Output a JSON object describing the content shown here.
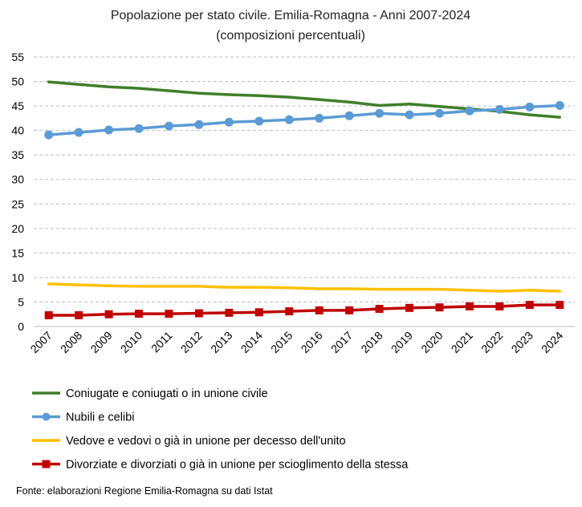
{
  "chart_data": {
    "type": "line",
    "title": "Popolazione per stato civile. Emilia-Romagna - Anni 2007-2024",
    "subtitle": "(composizioni percentuali)",
    "xlabel": "",
    "ylabel": "",
    "ylim": [
      0,
      55
    ],
    "yticks": [
      0,
      5,
      10,
      15,
      20,
      25,
      30,
      35,
      40,
      45,
      50,
      55
    ],
    "grid": true,
    "legend_position": "bottom",
    "categories": [
      "2007",
      "2008",
      "2009",
      "2010",
      "2011",
      "2012",
      "2013",
      "2014",
      "2015",
      "2016",
      "2017",
      "2018",
      "2019",
      "2020",
      "2021",
      "2022",
      "2023",
      "2024"
    ],
    "series": [
      {
        "name": "Coniugate e coniugati o in unione civile",
        "color": "#3f7f2a",
        "marker": "none",
        "values": [
          49.9,
          49.4,
          48.9,
          48.6,
          48.1,
          47.6,
          47.3,
          47.1,
          46.8,
          46.3,
          45.8,
          45.1,
          45.4,
          44.9,
          44.4,
          43.9,
          43.2,
          42.7
        ]
      },
      {
        "name": "Nubili e celibi",
        "color": "#5b9bd5",
        "marker": "circle",
        "values": [
          39.1,
          39.6,
          40.1,
          40.4,
          40.9,
          41.2,
          41.7,
          41.9,
          42.2,
          42.5,
          43.0,
          43.5,
          43.2,
          43.5,
          44.0,
          44.3,
          44.8,
          45.1
        ]
      },
      {
        "name": "Vedove e vedovi o già in unione per decesso dell'unito",
        "color": "#ffc000",
        "marker": "none",
        "values": [
          8.7,
          8.5,
          8.3,
          8.2,
          8.2,
          8.2,
          8.0,
          8.0,
          7.9,
          7.7,
          7.7,
          7.6,
          7.6,
          7.6,
          7.4,
          7.2,
          7.4,
          7.2
        ]
      },
      {
        "name": "Divorziate e divorziati o già in unione per scioglimento della stessa",
        "color": "#c00000",
        "marker": "square",
        "values": [
          2.3,
          2.3,
          2.5,
          2.6,
          2.6,
          2.7,
          2.8,
          2.9,
          3.1,
          3.3,
          3.3,
          3.6,
          3.8,
          3.9,
          4.1,
          4.1,
          4.4,
          4.4
        ]
      }
    ]
  },
  "source_note": "Fonte: elaborazioni Regione Emilia-Romagna su dati Istat"
}
